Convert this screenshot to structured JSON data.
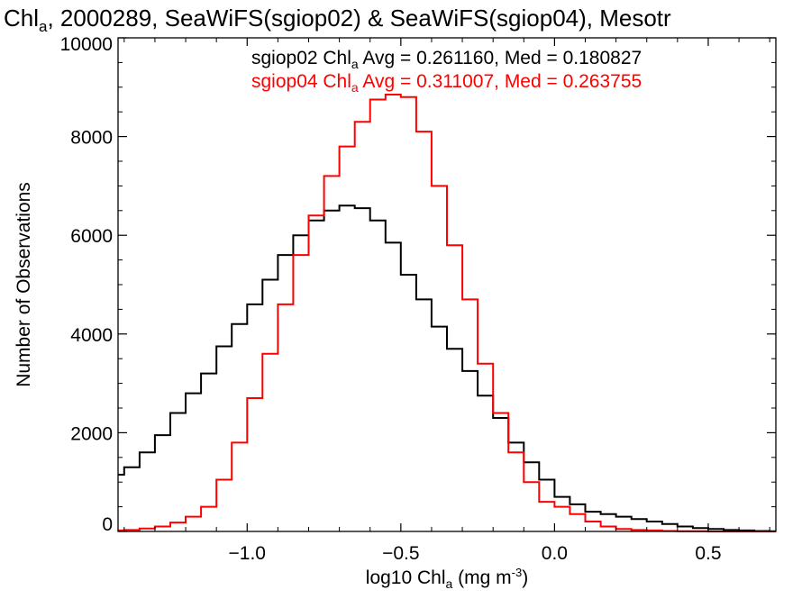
{
  "chart_data": {
    "type": "line",
    "title": {
      "pre": "Chl",
      "sub": "a",
      "post": ", 2000289, SeaWiFS(sgiop02) & SeaWiFS(sgiop04), Mesotr"
    },
    "xlabel": {
      "pre": "log10 Chl",
      "sub": "a",
      "mid": " (mg m",
      "sup": "-3",
      "post": ")"
    },
    "ylabel": "Number of Observations",
    "xlim": [
      -1.42,
      0.72
    ],
    "ylim": [
      0,
      10000
    ],
    "x_ticks": [
      {
        "value": -1.0,
        "label": "−1.0"
      },
      {
        "value": -0.5,
        "label": "−0.5"
      },
      {
        "value": 0.0,
        "label": "0.0"
      },
      {
        "value": 0.5,
        "label": "0.5"
      }
    ],
    "y_ticks": [
      {
        "value": 0,
        "label": "0"
      },
      {
        "value": 2000,
        "label": "2000"
      },
      {
        "value": 4000,
        "label": "4000"
      },
      {
        "value": 6000,
        "label": "6000"
      },
      {
        "value": 8000,
        "label": "8000"
      },
      {
        "value": 10000,
        "label": "10000"
      }
    ],
    "grid": false,
    "legend_position": "top-right",
    "series": [
      {
        "name_pre": "sgiop02 Chl",
        "name_sub": "a",
        "name_post": " Avg = 0.261160, Med = 0.180827",
        "color": "#000000",
        "x": [
          -1.42,
          -1.4,
          -1.35,
          -1.3,
          -1.25,
          -1.2,
          -1.15,
          -1.1,
          -1.05,
          -1.0,
          -0.95,
          -0.9,
          -0.85,
          -0.8,
          -0.75,
          -0.7,
          -0.65,
          -0.6,
          -0.55,
          -0.5,
          -0.45,
          -0.4,
          -0.35,
          -0.3,
          -0.25,
          -0.2,
          -0.15,
          -0.1,
          -0.05,
          0.0,
          0.05,
          0.1,
          0.15,
          0.2,
          0.25,
          0.3,
          0.35,
          0.4,
          0.45,
          0.5,
          0.55,
          0.6,
          0.65,
          0.7,
          0.72
        ],
        "y": [
          1150,
          1300,
          1600,
          1950,
          2400,
          2800,
          3200,
          3750,
          4200,
          4600,
          5100,
          5600,
          6000,
          6300,
          6500,
          6600,
          6550,
          6300,
          5850,
          5200,
          4700,
          4150,
          3700,
          3250,
          2750,
          2300,
          1800,
          1400,
          1050,
          700,
          550,
          400,
          350,
          300,
          250,
          200,
          150,
          100,
          70,
          50,
          30,
          20,
          10,
          5,
          5
        ]
      },
      {
        "name_pre": "sgiop04 Chl",
        "name_sub": "a",
        "name_post": " Avg = 0.311007, Med = 0.263755",
        "color": "#ff0000",
        "x": [
          -1.42,
          -1.4,
          -1.35,
          -1.3,
          -1.25,
          -1.2,
          -1.15,
          -1.1,
          -1.05,
          -1.0,
          -0.95,
          -0.9,
          -0.85,
          -0.8,
          -0.75,
          -0.7,
          -0.65,
          -0.6,
          -0.55,
          -0.5,
          -0.45,
          -0.4,
          -0.35,
          -0.3,
          -0.25,
          -0.2,
          -0.15,
          -0.1,
          -0.05,
          0.0,
          0.05,
          0.1,
          0.15,
          0.2,
          0.25,
          0.3,
          0.35,
          0.4,
          0.45,
          0.5,
          0.55,
          0.6,
          0.65,
          0.7,
          0.72
        ],
        "y": [
          20,
          30,
          60,
          100,
          180,
          300,
          500,
          1050,
          1800,
          2700,
          3600,
          4600,
          5600,
          6400,
          7200,
          7800,
          8300,
          8750,
          8850,
          8800,
          8100,
          7000,
          5800,
          4700,
          3400,
          2400,
          1600,
          1000,
          600,
          500,
          350,
          200,
          100,
          50,
          30,
          20,
          10,
          5,
          5,
          0,
          0,
          0,
          0,
          0,
          0
        ]
      }
    ]
  }
}
